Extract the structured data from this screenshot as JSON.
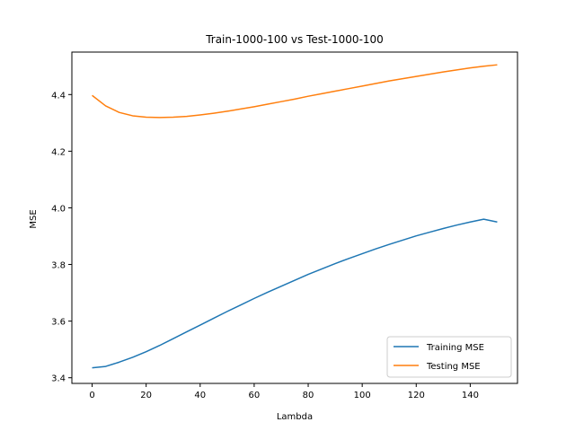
{
  "chart_data": {
    "type": "line",
    "title": "Train-1000-100 vs Test-1000-100",
    "xlabel": "Lambda",
    "ylabel": "MSE",
    "xlim": [
      -7.5,
      157.5
    ],
    "ylim": [
      3.38,
      4.55
    ],
    "xticks": [
      0,
      20,
      40,
      60,
      80,
      100,
      120,
      140
    ],
    "yticks": [
      3.4,
      3.6,
      3.8,
      4.0,
      4.2,
      4.4
    ],
    "xtick_labels": [
      "0",
      "20",
      "40",
      "60",
      "80",
      "100",
      "120",
      "140"
    ],
    "ytick_labels": [
      "3.4",
      "3.6",
      "3.8",
      "4.0",
      "4.2",
      "4.4"
    ],
    "grid": false,
    "legend_position": "lower-right",
    "series": [
      {
        "name": "Training MSE",
        "color": "#1f77b4",
        "x": [
          0,
          5,
          10,
          15,
          20,
          25,
          30,
          35,
          40,
          45,
          50,
          55,
          60,
          65,
          70,
          75,
          80,
          85,
          90,
          95,
          100,
          105,
          110,
          115,
          120,
          125,
          130,
          135,
          140,
          145,
          150
        ],
        "y": [
          3.435,
          3.44,
          3.455,
          3.472,
          3.492,
          3.514,
          3.538,
          3.562,
          3.586,
          3.61,
          3.634,
          3.657,
          3.68,
          3.702,
          3.723,
          3.744,
          3.765,
          3.784,
          3.803,
          3.821,
          3.838,
          3.855,
          3.871,
          3.886,
          3.901,
          3.914,
          3.927,
          3.939,
          3.95,
          3.96,
          3.95
        ]
      },
      {
        "name": "Testing MSE",
        "color": "#ff7f0e",
        "x": [
          0,
          5,
          10,
          15,
          20,
          25,
          30,
          35,
          40,
          45,
          50,
          55,
          60,
          65,
          70,
          75,
          80,
          85,
          90,
          95,
          100,
          105,
          110,
          115,
          120,
          125,
          130,
          135,
          140,
          145,
          150
        ],
        "y": [
          4.397,
          4.36,
          4.337,
          4.325,
          4.32,
          4.319,
          4.32,
          4.323,
          4.328,
          4.334,
          4.341,
          4.349,
          4.357,
          4.366,
          4.375,
          4.384,
          4.394,
          4.403,
          4.412,
          4.421,
          4.43,
          4.439,
          4.448,
          4.456,
          4.464,
          4.472,
          4.48,
          4.487,
          4.494,
          4.5,
          4.505
        ]
      }
    ]
  }
}
